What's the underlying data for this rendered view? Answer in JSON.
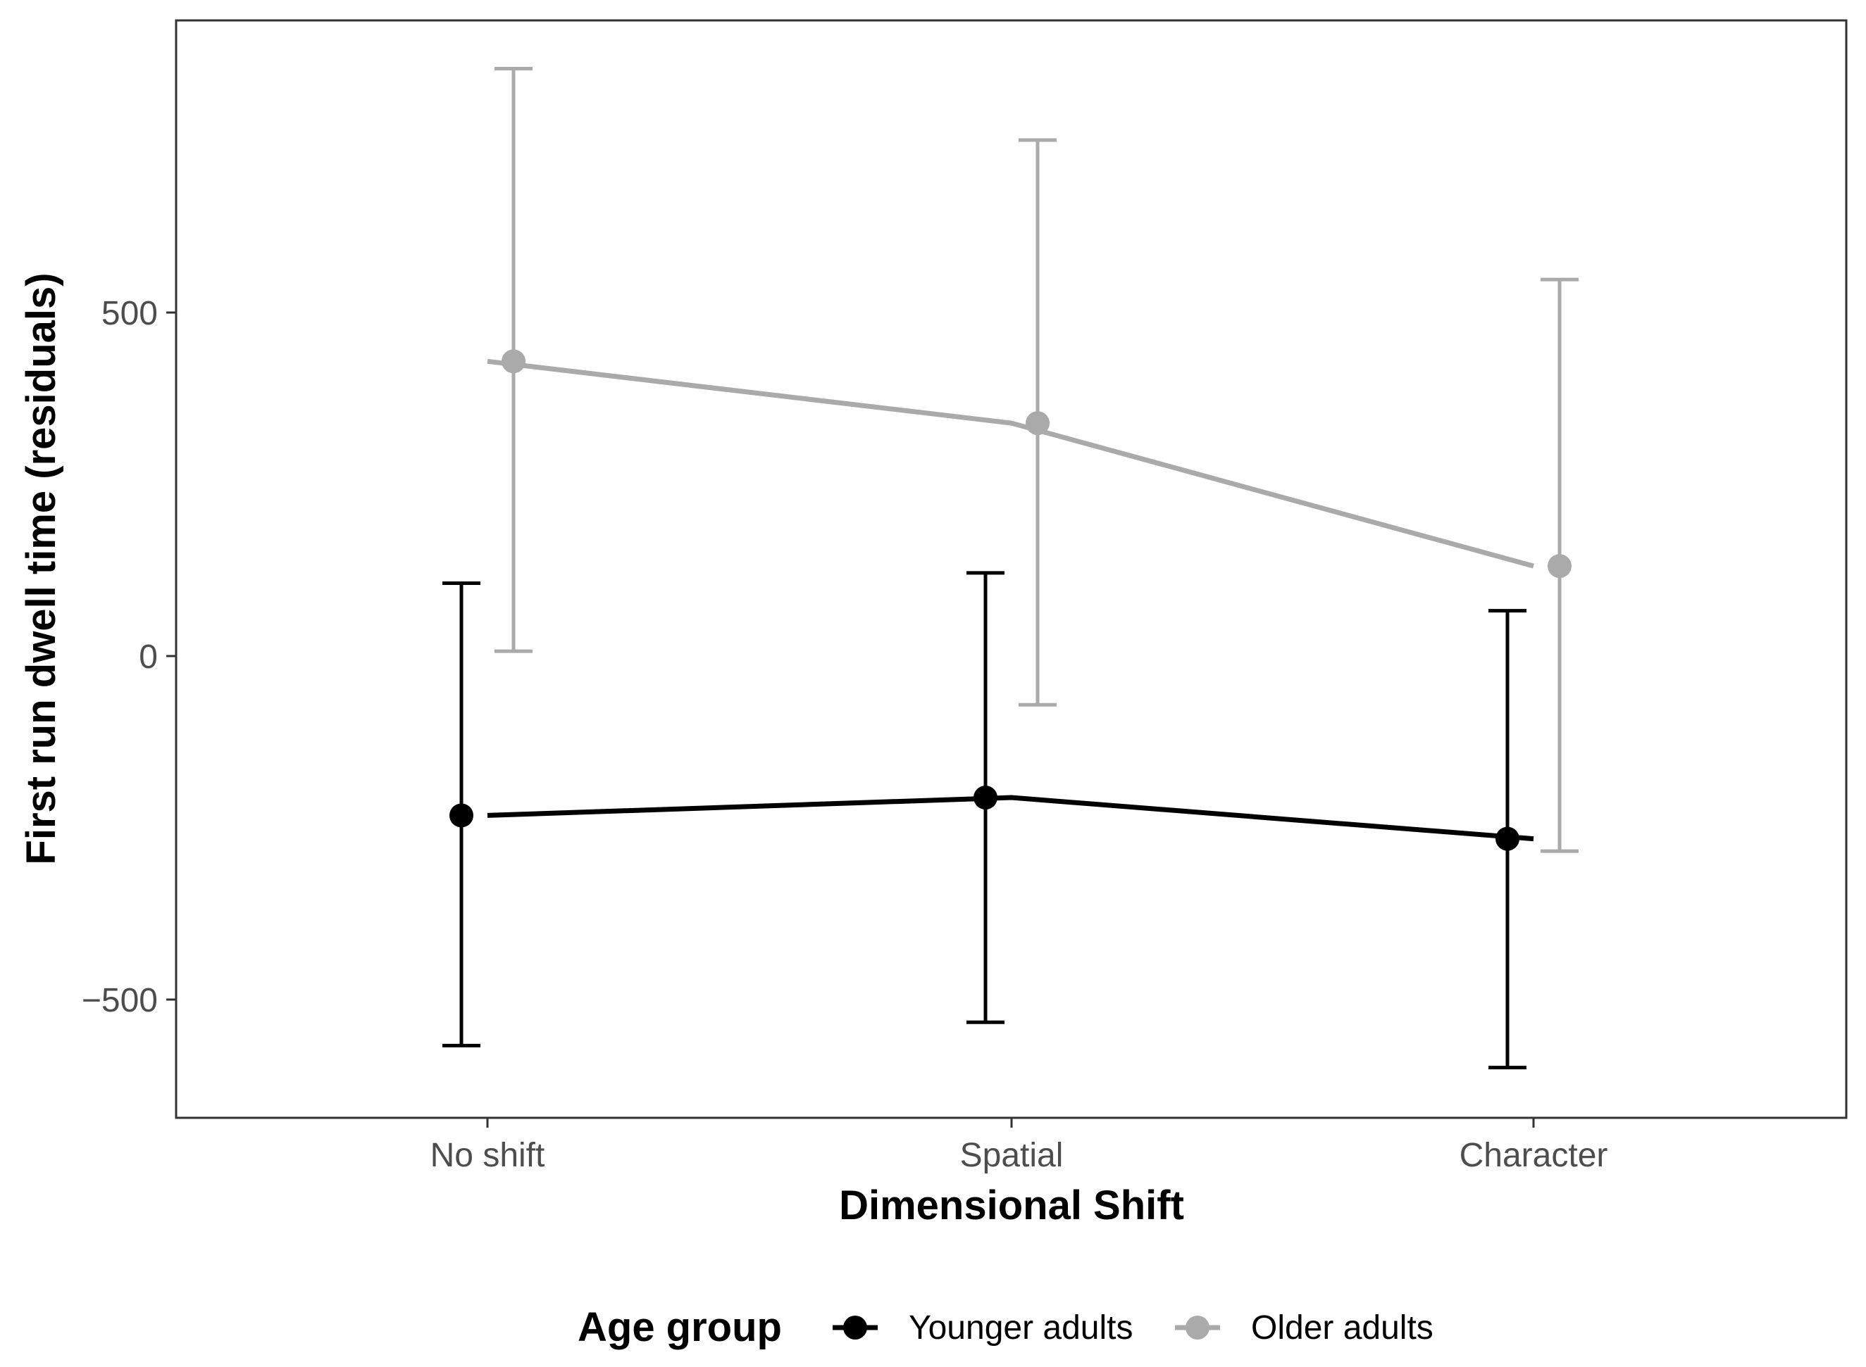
{
  "chart_data": {
    "type": "line",
    "xlabel": "Dimensional Shift",
    "ylabel": "First run dwell time (residuals)",
    "categories": [
      "No shift",
      "Spatial",
      "Character"
    ],
    "ylim": [
      -660,
      930
    ],
    "yticks": [
      -500,
      0,
      500
    ],
    "ytick_labels": [
      "−500",
      "0",
      "500"
    ],
    "grid": false,
    "legend": {
      "title": "Age group",
      "position": "bottom"
    },
    "series": [
      {
        "name": "Younger adults",
        "color": "#000000",
        "values": [
          -232,
          -206,
          -266
        ],
        "lower": [
          -567,
          -533,
          -599
        ],
        "upper": [
          106,
          121,
          66
        ]
      },
      {
        "name": "Older adults",
        "color": "#aaaaaa",
        "values": [
          429,
          339,
          131
        ],
        "lower": [
          7,
          -71,
          -284
        ],
        "upper": [
          855,
          751,
          548
        ]
      }
    ]
  }
}
